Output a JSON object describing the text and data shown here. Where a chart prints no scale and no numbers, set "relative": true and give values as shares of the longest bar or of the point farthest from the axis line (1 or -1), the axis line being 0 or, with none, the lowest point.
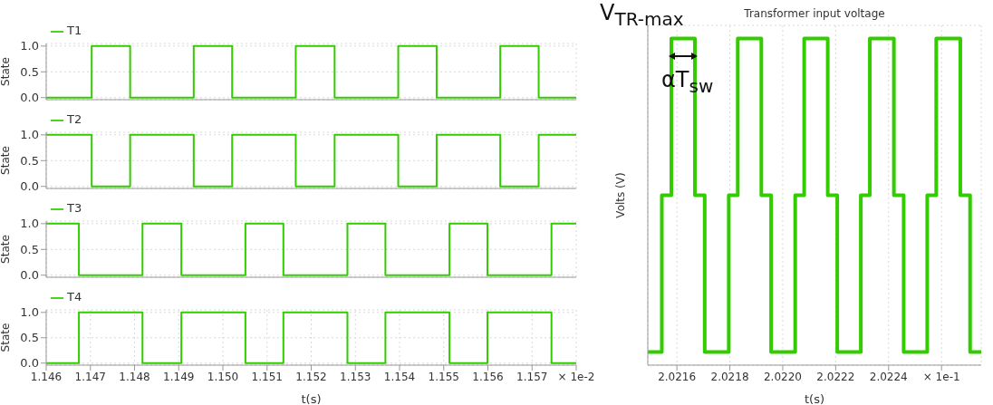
{
  "chart_data": [
    {
      "type": "step",
      "ylabel": "State",
      "xlim": [
        1.146,
        1.158
      ],
      "xticks": [
        1.146,
        1.147,
        1.148,
        1.149,
        1.15,
        1.151,
        1.152,
        1.153,
        1.154,
        1.155,
        1.156,
        1.157
      ],
      "ylim": [
        -0.04,
        1.05
      ],
      "yticks": [
        {
          "value": 0,
          "label": "0.0"
        },
        {
          "value": 0.5,
          "label": "0.5"
        },
        {
          "value": 1,
          "label": "1.0"
        }
      ],
      "grid": true,
      "legend": "top left",
      "tick_labels": "y",
      "series": [
        {
          "name": "T1",
          "color": "#33cc00",
          "x": [
            1.146,
            1.14703,
            1.1479,
            1.14934,
            1.15021,
            1.15165,
            1.15253,
            1.15397,
            1.15484,
            1.15628,
            1.15715,
            1.158
          ],
          "values": [
            0,
            1,
            0,
            1,
            0,
            1,
            0,
            1,
            0,
            1,
            0,
            0
          ]
        }
      ]
    },
    {
      "type": "step",
      "ylabel": "State",
      "xlim": [
        1.146,
        1.158
      ],
      "xticks": [
        1.146,
        1.147,
        1.148,
        1.149,
        1.15,
        1.151,
        1.152,
        1.153,
        1.154,
        1.155,
        1.156,
        1.157
      ],
      "ylim": [
        -0.04,
        1.05
      ],
      "yticks": [
        {
          "value": 0,
          "label": "0.0"
        },
        {
          "value": 0.5,
          "label": "0.5"
        },
        {
          "value": 1,
          "label": "1.0"
        }
      ],
      "grid": true,
      "legend": "top left",
      "tick_labels": "y",
      "series": [
        {
          "name": "T2",
          "color": "#33cc00",
          "x": [
            1.146,
            1.14703,
            1.1479,
            1.14934,
            1.15021,
            1.15165,
            1.15253,
            1.15397,
            1.15484,
            1.15628,
            1.15715,
            1.158
          ],
          "values": [
            1,
            0,
            1,
            0,
            1,
            0,
            1,
            0,
            1,
            0,
            1,
            1
          ]
        }
      ]
    },
    {
      "type": "step",
      "ylabel": "State",
      "xlim": [
        1.146,
        1.158
      ],
      "xticks": [
        1.146,
        1.147,
        1.148,
        1.149,
        1.15,
        1.151,
        1.152,
        1.153,
        1.154,
        1.155,
        1.156,
        1.157
      ],
      "ylim": [
        -0.04,
        1.05
      ],
      "yticks": [
        {
          "value": 0,
          "label": "0.0"
        },
        {
          "value": 0.5,
          "label": "0.5"
        },
        {
          "value": 1,
          "label": "1.0"
        }
      ],
      "grid": true,
      "legend": "top left",
      "tick_labels": "y",
      "series": [
        {
          "name": "T3",
          "color": "#33cc00",
          "x": [
            1.146,
            1.14674,
            1.14818,
            1.14906,
            1.15051,
            1.15137,
            1.15282,
            1.15368,
            1.15513,
            1.15599,
            1.15744,
            1.158
          ],
          "values": [
            1,
            0,
            1,
            0,
            1,
            0,
            1,
            0,
            1,
            0,
            1,
            1
          ]
        }
      ]
    },
    {
      "type": "step",
      "ylabel": "State",
      "xlabel": "t(s)",
      "xlim": [
        1.146,
        1.158
      ],
      "xticks": [
        1.146,
        1.147,
        1.148,
        1.149,
        {
          "value": 1.15,
          "label": "1.150"
        },
        1.151,
        1.152,
        1.153,
        1.154,
        1.155,
        1.156,
        1.157,
        {
          "value": 1.158,
          "label": "× 1e-2"
        }
      ],
      "ylim": [
        -0.04,
        1.05
      ],
      "yticks": [
        {
          "value": 0,
          "label": "0.0"
        },
        {
          "value": 0.5,
          "label": "0.5"
        },
        {
          "value": 1,
          "label": "1.0"
        }
      ],
      "grid": true,
      "legend": "top left",
      "series": [
        {
          "name": "T4",
          "color": "#33cc00",
          "x": [
            1.146,
            1.14674,
            1.14818,
            1.14906,
            1.15051,
            1.15137,
            1.15282,
            1.15368,
            1.15513,
            1.15599,
            1.15744,
            1.158
          ],
          "values": [
            0,
            1,
            0,
            1,
            0,
            1,
            0,
            1,
            0,
            1,
            0,
            0
          ]
        }
      ]
    },
    {
      "type": "step",
      "title": "Transformer input voltage",
      "xlabel": "t(s)",
      "ylabel": "Volts (V)",
      "relative": true,
      "xlim": [
        2.02149,
        2.02275
      ],
      "xticks": [
        2.0216,
        2.0218,
        {
          "value": 2.022,
          "label": "2.0220"
        },
        2.0222,
        2.0224,
        {
          "value": 2.0226,
          "label": "× 1e-1"
        }
      ],
      "grid": true,
      "annotations": [
        "V$_{TR-max}$",
        "αT$_{sw}$"
      ],
      "series": [
        {
          "color": "#33cc00",
          "x": [
            2.02149,
            2.021543,
            2.021579,
            2.021668,
            2.021705,
            2.021796,
            2.02183,
            2.021919,
            2.021956,
            2.022047,
            2.022081,
            2.02217,
            2.022206,
            2.022295,
            2.022329,
            2.02242,
            2.022457,
            2.022546,
            2.02258,
            2.022671,
            2.022708,
            2.02275
          ],
          "values": [
            0.04,
            0.52,
            1,
            0.52,
            0.04,
            0.52,
            1,
            0.52,
            0.04,
            0.52,
            1,
            0.52,
            0.04,
            0.52,
            1,
            0.52,
            0.04,
            0.52,
            1,
            0.52,
            0.04,
            0.04
          ]
        }
      ]
    }
  ]
}
